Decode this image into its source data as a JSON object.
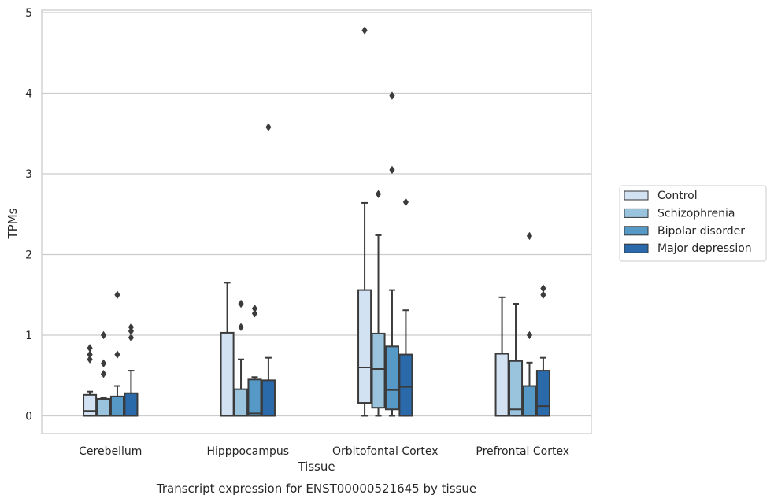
{
  "chart_data": {
    "type": "box",
    "title": "",
    "caption": "Transcript expression for ENST00000521645 by tissue",
    "xlabel": "Tissue",
    "ylabel": "TPMs",
    "ylim": [
      -0.22,
      5.03
    ],
    "yticks": [
      "0",
      "1",
      "2",
      "3",
      "4",
      "5"
    ],
    "grid": true,
    "legend_position": "right",
    "categories": [
      "Cerebellum",
      "Hipppocampus",
      "Orbitofontal Cortex",
      "Prefrontal Cortex"
    ],
    "series": [
      {
        "name": "Control",
        "color": "#d3e2f2",
        "boxes": [
          {
            "whisker_low": 0,
            "q1": 0,
            "median": 0.06,
            "q3": 0.26,
            "whisker_high": 0.3,
            "outliers": [
              0.84,
              0.76,
              0.7
            ]
          },
          {
            "whisker_low": 0,
            "q1": 0,
            "median": 0,
            "q3": 1.03,
            "whisker_high": 1.65,
            "outliers": []
          },
          {
            "whisker_low": 0,
            "q1": 0.16,
            "median": 0.6,
            "q3": 1.56,
            "whisker_high": 2.64,
            "outliers": [
              4.78
            ]
          },
          {
            "whisker_low": 0,
            "q1": 0,
            "median": 0,
            "q3": 0.77,
            "whisker_high": 1.47,
            "outliers": []
          }
        ]
      },
      {
        "name": "Schizophrenia",
        "color": "#9ac3de",
        "boxes": [
          {
            "whisker_low": 0,
            "q1": 0,
            "median": 0.2,
            "q3": 0.21,
            "whisker_high": 0.22,
            "outliers": [
              1.0,
              0.65,
              0.52
            ]
          },
          {
            "whisker_low": 0,
            "q1": 0,
            "median": 0,
            "q3": 0.33,
            "whisker_high": 0.7,
            "outliers": [
              1.39,
              1.1
            ]
          },
          {
            "whisker_low": 0,
            "q1": 0.1,
            "median": 0.58,
            "q3": 1.02,
            "whisker_high": 2.24,
            "outliers": [
              2.75
            ]
          },
          {
            "whisker_low": 0,
            "q1": 0,
            "median": 0.08,
            "q3": 0.68,
            "whisker_high": 1.39,
            "outliers": []
          }
        ]
      },
      {
        "name": "Bipolar disorder",
        "color": "#5799c6",
        "boxes": [
          {
            "whisker_low": 0,
            "q1": 0,
            "median": 0,
            "q3": 0.24,
            "whisker_high": 0.37,
            "outliers": [
              1.5,
              0.76
            ]
          },
          {
            "whisker_low": 0,
            "q1": 0,
            "median": 0.03,
            "q3": 0.45,
            "whisker_high": 0.48,
            "outliers": [
              1.33,
              1.27
            ]
          },
          {
            "whisker_low": 0,
            "q1": 0.08,
            "median": 0.32,
            "q3": 0.86,
            "whisker_high": 1.56,
            "outliers": [
              3.97,
              3.05
            ]
          },
          {
            "whisker_low": 0,
            "q1": 0,
            "median": 0,
            "q3": 0.37,
            "whisker_high": 0.66,
            "outliers": [
              2.23,
              1.0
            ]
          }
        ]
      },
      {
        "name": "Major depression",
        "color": "#2b6aaa",
        "boxes": [
          {
            "whisker_low": 0,
            "q1": 0,
            "median": 0,
            "q3": 0.28,
            "whisker_high": 0.56,
            "outliers": [
              1.1,
              1.05,
              0.97
            ]
          },
          {
            "whisker_low": 0,
            "q1": 0,
            "median": 0,
            "q3": 0.44,
            "whisker_high": 0.72,
            "outliers": [
              3.58
            ]
          },
          {
            "whisker_low": 0,
            "q1": 0,
            "median": 0.36,
            "q3": 0.76,
            "whisker_high": 1.31,
            "outliers": [
              2.65
            ]
          },
          {
            "whisker_low": 0,
            "q1": 0,
            "median": 0.12,
            "q3": 0.56,
            "whisker_high": 0.72,
            "outliers": [
              1.58,
              1.5
            ]
          }
        ]
      }
    ]
  }
}
